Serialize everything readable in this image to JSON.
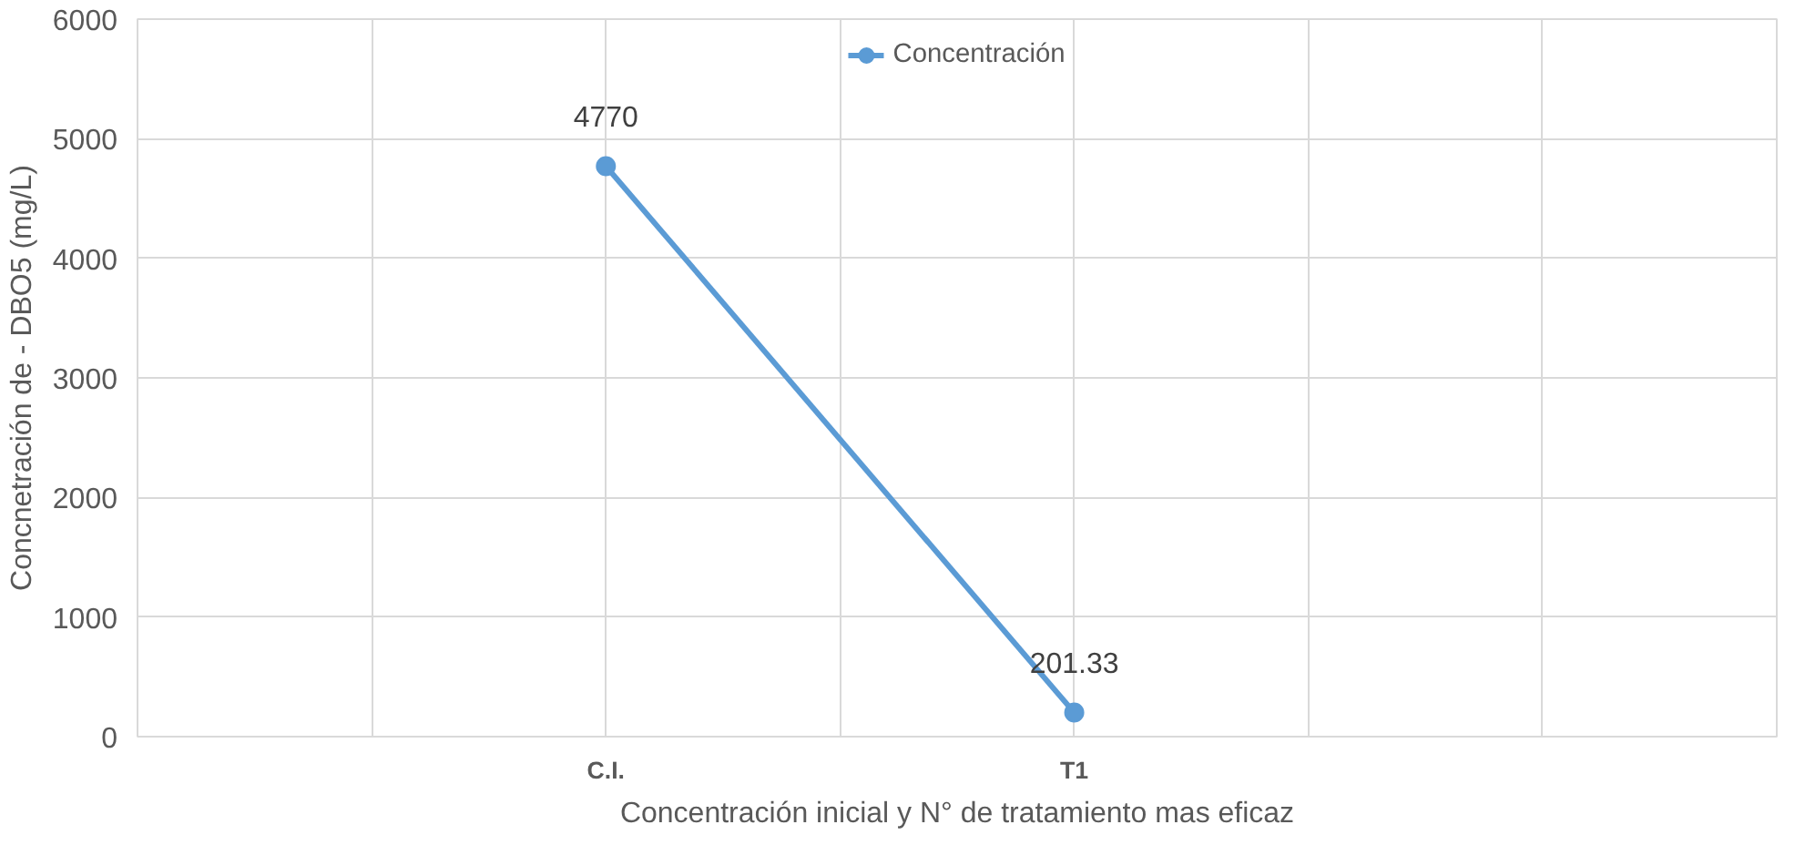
{
  "chart_data": {
    "type": "line",
    "xlabel": "Concentración inicial y N° de tratamiento mas eficaz",
    "ylabel": "Concnetración de - DBO5 (mg/L)",
    "categories": [
      null,
      null,
      "C.I.",
      null,
      "T1",
      null,
      null,
      null
    ],
    "series": [
      {
        "name": "Concentración",
        "color": "#5b9bd5",
        "values": [
          null,
          null,
          4770,
          null,
          201.33,
          null,
          null,
          null
        ]
      }
    ],
    "ylim": [
      0,
      6000
    ],
    "yticks": [
      0,
      1000,
      2000,
      3000,
      4000,
      5000,
      6000
    ],
    "grid": true,
    "legend": "top",
    "marker": "circle",
    "data_labels": true
  }
}
